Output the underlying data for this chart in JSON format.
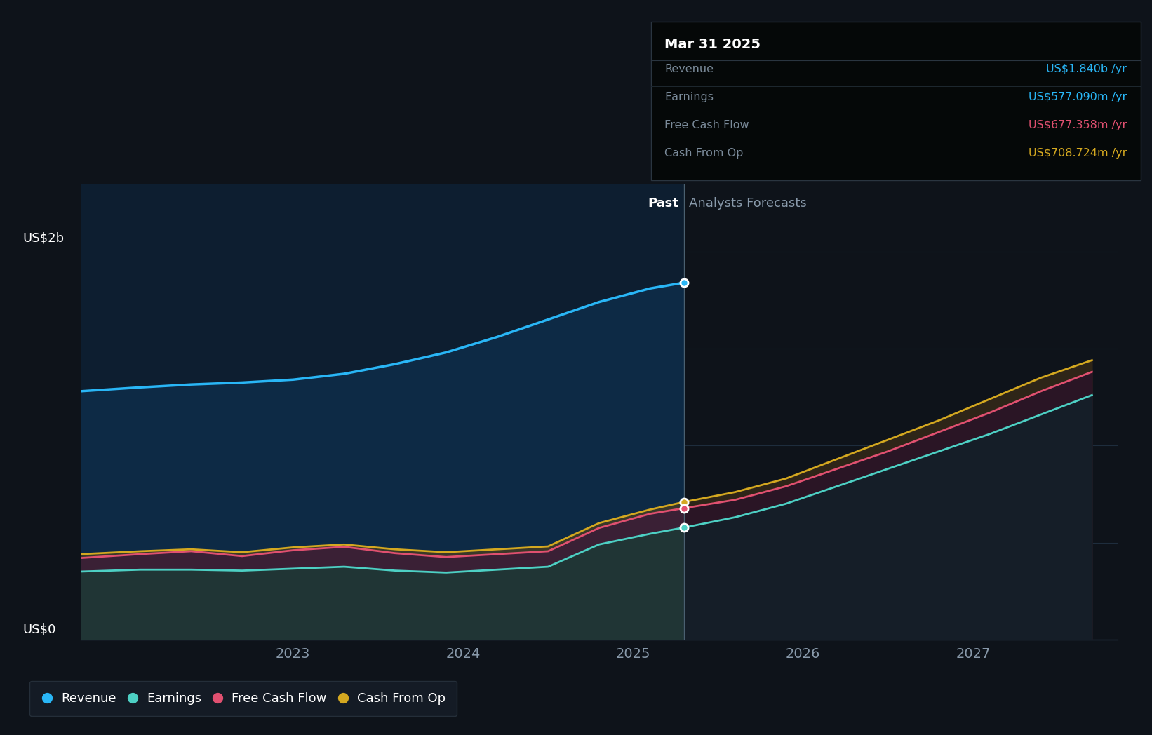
{
  "bg_color": "#0e131a",
  "plot_bg_past": "#0d1e30",
  "plot_bg_future": "#0e131a",
  "grid_color": "#1e2d3d",
  "ylabel_top": "US$2b",
  "ylabel_bottom": "US$0",
  "x_min": 2021.75,
  "x_max": 2027.85,
  "y_min": 0.0,
  "y_max": 2.35,
  "divider_x": 2025.3,
  "past_label": "Past",
  "future_label": "Analysts Forecasts",
  "tooltip_date": "Mar 31 2025",
  "tooltip_items": [
    {
      "label": "Revenue",
      "value": "US$1.840b /yr",
      "color": "#29b6f6"
    },
    {
      "label": "Earnings",
      "value": "US$577.090m /yr",
      "color": "#29b6f6"
    },
    {
      "label": "Free Cash Flow",
      "value": "US$677.358m /yr",
      "color": "#e05070"
    },
    {
      "label": "Cash From Op",
      "value": "US$708.724m /yr",
      "color": "#d4a820"
    }
  ],
  "revenue": {
    "x_past": [
      2021.75,
      2022.1,
      2022.4,
      2022.7,
      2023.0,
      2023.3,
      2023.6,
      2023.9,
      2024.2,
      2024.5,
      2024.8,
      2025.1,
      2025.3
    ],
    "y_past": [
      1.28,
      1.3,
      1.315,
      1.325,
      1.34,
      1.37,
      1.42,
      1.48,
      1.56,
      1.65,
      1.74,
      1.81,
      1.84
    ],
    "color": "#29b6f6",
    "fill_color": "#0d2a45"
  },
  "cash_from_op": {
    "x_past": [
      2021.75,
      2022.1,
      2022.4,
      2022.7,
      2023.0,
      2023.3,
      2023.6,
      2023.9,
      2024.2,
      2024.5,
      2024.8,
      2025.1,
      2025.3
    ],
    "y_past": [
      0.44,
      0.455,
      0.465,
      0.45,
      0.475,
      0.49,
      0.465,
      0.45,
      0.465,
      0.48,
      0.6,
      0.67,
      0.709
    ],
    "x_future": [
      2025.3,
      2025.6,
      2025.9,
      2026.2,
      2026.5,
      2026.8,
      2027.1,
      2027.4,
      2027.7
    ],
    "y_future": [
      0.709,
      0.76,
      0.83,
      0.93,
      1.03,
      1.13,
      1.24,
      1.35,
      1.44
    ],
    "color": "#d4a820",
    "fill_color_past": "#3a3828",
    "fill_color_future": "#2e2518"
  },
  "free_cash_flow": {
    "x_past": [
      2021.75,
      2022.1,
      2022.4,
      2022.7,
      2023.0,
      2023.3,
      2023.6,
      2023.9,
      2024.2,
      2024.5,
      2024.8,
      2025.1,
      2025.3
    ],
    "y_past": [
      0.42,
      0.44,
      0.455,
      0.43,
      0.46,
      0.478,
      0.445,
      0.425,
      0.44,
      0.455,
      0.575,
      0.648,
      0.677
    ],
    "x_future": [
      2025.3,
      2025.6,
      2025.9,
      2026.2,
      2026.5,
      2026.8,
      2027.1,
      2027.4,
      2027.7
    ],
    "y_future": [
      0.677,
      0.72,
      0.79,
      0.88,
      0.97,
      1.07,
      1.17,
      1.28,
      1.38
    ],
    "color": "#e05070",
    "fill_color_past": "#3a2035",
    "fill_color_future": "#2a1525"
  },
  "earnings": {
    "x_past": [
      2021.75,
      2022.1,
      2022.4,
      2022.7,
      2023.0,
      2023.3,
      2023.6,
      2023.9,
      2024.2,
      2024.5,
      2024.8,
      2025.1,
      2025.3
    ],
    "y_past": [
      0.35,
      0.36,
      0.36,
      0.355,
      0.365,
      0.375,
      0.355,
      0.345,
      0.36,
      0.375,
      0.49,
      0.545,
      0.577
    ],
    "x_future": [
      2025.3,
      2025.6,
      2025.9,
      2026.2,
      2026.5,
      2026.8,
      2027.1,
      2027.4,
      2027.7
    ],
    "y_future": [
      0.577,
      0.63,
      0.7,
      0.79,
      0.88,
      0.97,
      1.06,
      1.16,
      1.26
    ],
    "color": "#4dd0c4",
    "fill_color_past": "#203535",
    "fill_color_future": "#151e28"
  },
  "xticks": [
    2023.0,
    2024.0,
    2025.0,
    2026.0,
    2027.0
  ],
  "xtick_labels": [
    "2023",
    "2024",
    "2025",
    "2026",
    "2027"
  ],
  "legend_items": [
    {
      "label": "Revenue",
      "color": "#29b6f6"
    },
    {
      "label": "Earnings",
      "color": "#4dd0c4"
    },
    {
      "label": "Free Cash Flow",
      "color": "#e05070"
    },
    {
      "label": "Cash From Op",
      "color": "#d4a820"
    }
  ]
}
